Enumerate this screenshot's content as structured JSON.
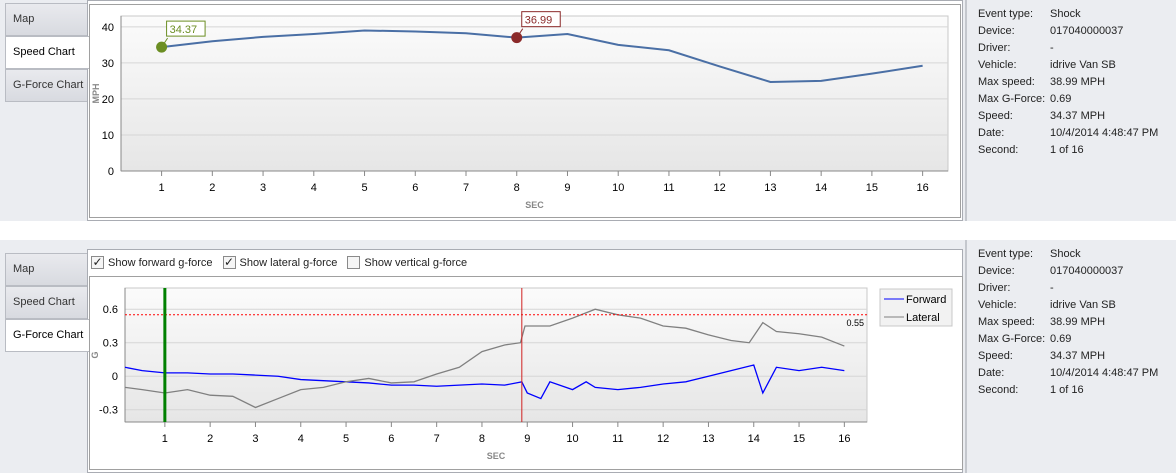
{
  "tabs": [
    {
      "label": "Map"
    },
    {
      "label": "Speed Chart"
    },
    {
      "label": "G-Force Chart"
    }
  ],
  "info": {
    "rows": [
      {
        "k": "Event type:",
        "v": "Shock"
      },
      {
        "k": "Device:",
        "v": "017040000037"
      },
      {
        "k": "Driver:",
        "v": "-"
      },
      {
        "k": "Vehicle:",
        "v": "idrive Van SB"
      },
      {
        "k": "Max speed:",
        "v": "38.99 MPH"
      },
      {
        "k": "Max G-Force:",
        "v": "0.69"
      },
      {
        "k": "Speed:",
        "v": "34.37 MPH"
      },
      {
        "k": "Date:",
        "v": "10/4/2014 4:48:47 PM"
      },
      {
        "k": "Second:",
        "v": "1 of 16"
      }
    ]
  },
  "checks": [
    {
      "label": "Show forward g-force",
      "checked": true
    },
    {
      "label": "Show lateral g-force",
      "checked": true
    },
    {
      "label": "Show vertical g-force",
      "checked": false
    }
  ],
  "chart_data": [
    {
      "type": "line",
      "xlabel": "SEC",
      "ylabel": "MPH",
      "xlim": [
        0.2,
        16.5
      ],
      "ylim": [
        0,
        43
      ],
      "xticks": [
        1,
        2,
        3,
        4,
        5,
        6,
        7,
        8,
        9,
        10,
        11,
        12,
        13,
        14,
        15,
        16
      ],
      "yticks": [
        0,
        10,
        20,
        30,
        40
      ],
      "grid": true,
      "color": "#4a6fa5",
      "x": [
        1,
        2,
        3,
        4,
        5,
        6,
        7,
        8,
        9,
        10,
        11,
        12,
        13,
        14,
        15,
        16
      ],
      "y": [
        34.37,
        36.0,
        37.2,
        38.0,
        38.99,
        38.7,
        38.2,
        36.99,
        38.0,
        35.0,
        33.5,
        29.0,
        24.7,
        25.0,
        27.0,
        29.2
      ],
      "markers": [
        {
          "x": 1,
          "y": 34.37,
          "label": "34.37",
          "color": "#6b8e23"
        },
        {
          "x": 8,
          "y": 36.99,
          "label": "36.99",
          "color": "#8b2a2a"
        }
      ]
    },
    {
      "type": "line",
      "xlabel": "SEC",
      "ylabel": "G",
      "xlim": [
        0.12,
        16.5
      ],
      "ylim": [
        -0.41,
        0.79
      ],
      "xticks": [
        1,
        2,
        3,
        4,
        5,
        6,
        7,
        8,
        9,
        10,
        11,
        12,
        13,
        14,
        15,
        16
      ],
      "yticks": [
        -0.3,
        0,
        0.3,
        0.6
      ],
      "ytick_labels": [
        "-0.3",
        "0",
        "0.3",
        "0.6"
      ],
      "grid": true,
      "legend": "right",
      "threshold": {
        "value": 0.55,
        "label": "0.55",
        "color": "#ff0000"
      },
      "cursor_lines": [
        {
          "x": 1,
          "color": "#008000"
        },
        {
          "x": 8.88,
          "color": "#d02020"
        }
      ],
      "series": [
        {
          "name": "Forward",
          "color": "#0000ff",
          "x": [
            0.12,
            0.5,
            1,
            1.5,
            2,
            2.5,
            3,
            3.5,
            4,
            4.5,
            5,
            5.5,
            6,
            6.5,
            7,
            7.5,
            8,
            8.5,
            8.88,
            9,
            9.3,
            9.5,
            10,
            10.3,
            10.5,
            11,
            11.5,
            12,
            12.5,
            13,
            13.5,
            14,
            14.2,
            14.5,
            15,
            15.5,
            16
          ],
          "y": [
            0.08,
            0.05,
            0.03,
            0.03,
            0.02,
            0.02,
            0.01,
            0.0,
            -0.03,
            -0.04,
            -0.05,
            -0.06,
            -0.08,
            -0.08,
            -0.09,
            -0.08,
            -0.07,
            -0.08,
            -0.05,
            -0.15,
            -0.2,
            -0.05,
            -0.12,
            -0.05,
            -0.1,
            -0.12,
            -0.1,
            -0.07,
            -0.05,
            0.0,
            0.05,
            0.1,
            -0.15,
            0.08,
            0.05,
            0.08,
            0.05
          ]
        },
        {
          "name": "Lateral",
          "color": "#808080",
          "x": [
            0.12,
            0.5,
            1,
            1.5,
            2,
            2.5,
            3,
            3.5,
            4,
            4.5,
            5,
            5.5,
            6,
            6.5,
            7,
            7.5,
            8,
            8.5,
            8.85,
            8.95,
            9.5,
            10,
            10.5,
            11,
            11.5,
            12,
            12.5,
            13,
            13.5,
            13.9,
            14.2,
            14.5,
            15,
            15.5,
            16
          ],
          "y": [
            -0.1,
            -0.12,
            -0.15,
            -0.12,
            -0.17,
            -0.18,
            -0.28,
            -0.2,
            -0.12,
            -0.1,
            -0.05,
            -0.02,
            -0.06,
            -0.05,
            0.02,
            0.08,
            0.22,
            0.28,
            0.3,
            0.45,
            0.45,
            0.52,
            0.6,
            0.55,
            0.52,
            0.45,
            0.43,
            0.37,
            0.32,
            0.3,
            0.48,
            0.4,
            0.38,
            0.35,
            0.27
          ]
        }
      ]
    }
  ]
}
